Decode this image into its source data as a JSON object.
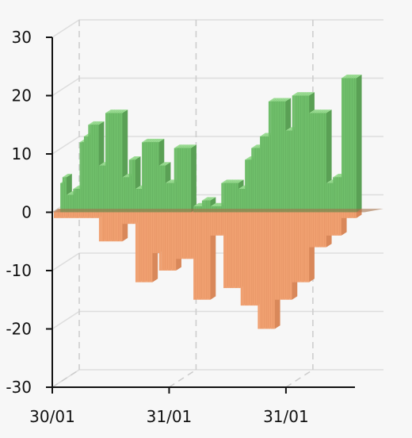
{
  "chart_data": {
    "type": "bar",
    "style": "3d-stacked-positive-negative",
    "title": "",
    "xlabel": "",
    "ylabel": "",
    "ylim": [
      -30,
      30
    ],
    "yticks": [
      30,
      20,
      10,
      0,
      -10,
      -20,
      -30
    ],
    "ytick_labels": [
      "30",
      "20",
      "10",
      "0",
      "-10",
      "-20",
      "-30"
    ],
    "xtick_labels": [
      "30/01",
      "31/01",
      "31/01"
    ],
    "grid": true,
    "colors": {
      "positive": "#6fbe6a",
      "negative": "#f0a070",
      "background": "#f7f7f7"
    },
    "series": [
      {
        "values": [
          0,
          0,
          0,
          5,
          6,
          6,
          3,
          3,
          3,
          4,
          4,
          4,
          12,
          12,
          13,
          13,
          15,
          15,
          15,
          15,
          15,
          8,
          8,
          8,
          17,
          17,
          17,
          17,
          17,
          17,
          17,
          17,
          6,
          6,
          6,
          9,
          9,
          9,
          4,
          4,
          4,
          12,
          12,
          12,
          12,
          12,
          12,
          12,
          12,
          8,
          8,
          8,
          5,
          5,
          5,
          5,
          11,
          11,
          11,
          11,
          11,
          11,
          11,
          11,
          0,
          1,
          1,
          1,
          1,
          2,
          2,
          2,
          2,
          1,
          1,
          1,
          1,
          1,
          5,
          5,
          5,
          5,
          5,
          5,
          5,
          5,
          4,
          4,
          4,
          9,
          9,
          9,
          11,
          11,
          11,
          11,
          13,
          13,
          13,
          13,
          19,
          19,
          19,
          19,
          19,
          19,
          19,
          19,
          14,
          14,
          14,
          20,
          20,
          20,
          20,
          20,
          20,
          20,
          20,
          17,
          17,
          17,
          17,
          17,
          17,
          17,
          17,
          5,
          5,
          5,
          6,
          6,
          6,
          6,
          23,
          23,
          23,
          23,
          23,
          23,
          23
        ]
      },
      {
        "values": [
          -1,
          -1,
          -1,
          -1,
          -1,
          -1,
          -1,
          -1,
          -1,
          -1,
          -1,
          -1,
          -1,
          -1,
          -1,
          -1,
          -1,
          -1,
          -1,
          -1,
          -1,
          -5,
          -5,
          -5,
          -5,
          -5,
          -5,
          -5,
          -5,
          -5,
          -5,
          -5,
          -2,
          -2,
          -2,
          -2,
          -2,
          -2,
          -12,
          -12,
          -12,
          -12,
          -12,
          -12,
          -12,
          -12,
          -7,
          -7,
          -7,
          -10,
          -10,
          -10,
          -10,
          -10,
          -10,
          -10,
          -10,
          -8,
          -8,
          -8,
          -8,
          -8,
          -8,
          -8,
          -8,
          -15,
          -15,
          -15,
          -15,
          -15,
          -15,
          -15,
          -15,
          -4,
          -4,
          -4,
          -4,
          -4,
          -4,
          -13,
          -13,
          -13,
          -13,
          -13,
          -13,
          -13,
          -13,
          -16,
          -16,
          -16,
          -16,
          -16,
          -16,
          -16,
          -16,
          -20,
          -20,
          -20,
          -20,
          -20,
          -20,
          -20,
          -20,
          -15,
          -15,
          -15,
          -15,
          -15,
          -15,
          -15,
          -15,
          -12,
          -12,
          -12,
          -12,
          -12,
          -12,
          -12,
          -12,
          -6,
          -6,
          -6,
          -6,
          -6,
          -6,
          -6,
          -6,
          -4,
          -4,
          -4,
          -4,
          -4,
          -4,
          -4,
          -1,
          -1,
          -1,
          -1,
          -1,
          -1,
          -1
        ]
      }
    ]
  }
}
